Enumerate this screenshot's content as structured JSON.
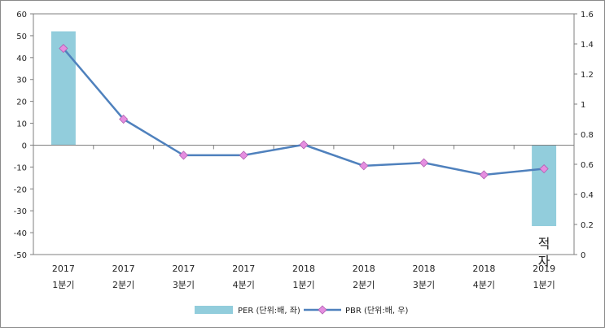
{
  "chart_data": {
    "type": "bar+line",
    "categories": [
      {
        "year": "2017",
        "quarter": "1분기"
      },
      {
        "year": "2017",
        "quarter": "2분기"
      },
      {
        "year": "2017",
        "quarter": "3분기"
      },
      {
        "year": "2017",
        "quarter": "4분기"
      },
      {
        "year": "2018",
        "quarter": "1분기"
      },
      {
        "year": "2018",
        "quarter": "2분기"
      },
      {
        "year": "2018",
        "quarter": "3분기"
      },
      {
        "year": "2018",
        "quarter": "4분기"
      },
      {
        "year": "2019",
        "quarter": "1분기"
      }
    ],
    "series": [
      {
        "name": "PER (단위:배, 좌)",
        "type": "bar",
        "axis": "left",
        "color": "#92CDDC",
        "values": [
          52,
          null,
          null,
          null,
          null,
          null,
          null,
          null,
          -37
        ]
      },
      {
        "name": "PBR (단위:배, 우)",
        "type": "line",
        "axis": "right",
        "color": "#4F81BD",
        "marker_color": "#E58EE0",
        "values": [
          1.37,
          0.9,
          0.66,
          0.66,
          0.73,
          0.59,
          0.61,
          0.53,
          0.57
        ]
      }
    ],
    "left_axis": {
      "min": -50,
      "max": 60,
      "step": 10
    },
    "right_axis": {
      "min": 0,
      "max": 1.6,
      "step": 0.2
    },
    "annotation": {
      "category_index": 8,
      "text": [
        "적",
        "자"
      ]
    },
    "legend_position": "bottom"
  }
}
